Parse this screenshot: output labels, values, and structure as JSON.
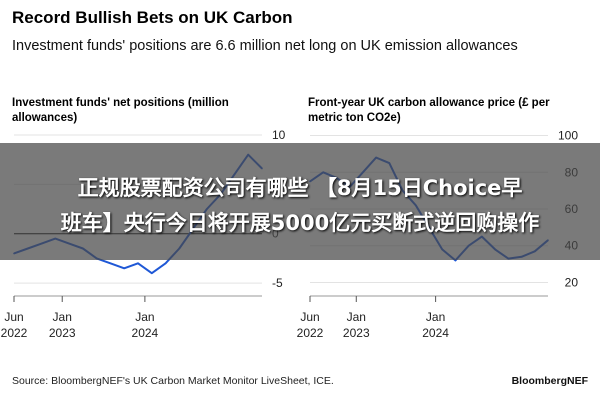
{
  "header": {
    "title": "Record Bullish Bets on UK Carbon",
    "subtitle": "Investment funds' positions are 6.6 million net long on UK emission allowances"
  },
  "overlay": {
    "line1": "正规股票配资公司有哪些 【8月15日Choice早",
    "line2": "班车】央行今日将开展5000亿元买断式逆回购操作"
  },
  "footer": {
    "source": "Source: BloombergNEF's UK Carbon Market Monitor LiveSheet, ICE.",
    "brand": "BloombergNEF"
  },
  "colors": {
    "series": "#1f58d6",
    "zero_line": "#000000",
    "grid": "#e3e3e3"
  },
  "chart_data": [
    {
      "type": "line",
      "title": "Investment funds' net positions (million allowances)",
      "x_ticks": [
        "Jun 2022",
        "Jan 2023",
        "Jan 2024"
      ],
      "y_ticks": [
        10,
        5,
        0,
        -5
      ],
      "ylim": [
        -5.5,
        10.5
      ],
      "xlim": [
        "2022-06",
        "2025-06"
      ],
      "grid": true,
      "series": [
        {
          "x": [
            "2022-06",
            "2022-08",
            "2022-10",
            "2022-12",
            "2023-02",
            "2023-04",
            "2023-06",
            "2023-08",
            "2023-10",
            "2023-12",
            "2024-02",
            "2024-04",
            "2024-06",
            "2024-08",
            "2024-10",
            "2024-12",
            "2025-02",
            "2025-04",
            "2025-06"
          ],
          "y": [
            -2.0,
            -1.5,
            -1.0,
            -0.5,
            -1.0,
            -1.5,
            -2.5,
            -3.0,
            -3.5,
            -3.0,
            -4.0,
            -3.0,
            -1.5,
            0.5,
            2.5,
            4.0,
            6.0,
            8.0,
            6.6
          ]
        }
      ]
    },
    {
      "type": "line",
      "title": "Front-year UK carbon allowance price (£ per metric ton CO2e)",
      "x_ticks": [
        "Jun 2022",
        "Jan 2023",
        "Jan 2024"
      ],
      "y_ticks": [
        100,
        80,
        60,
        40,
        20
      ],
      "ylim": [
        17,
        103
      ],
      "xlim": [
        "2022-06",
        "2025-06"
      ],
      "grid": true,
      "series": [
        {
          "x": [
            "2022-06",
            "2022-08",
            "2022-10",
            "2022-12",
            "2023-02",
            "2023-04",
            "2023-06",
            "2023-08",
            "2023-10",
            "2023-12",
            "2024-02",
            "2024-04",
            "2024-06",
            "2024-08",
            "2024-10",
            "2024-12",
            "2025-02",
            "2025-04",
            "2025-06"
          ],
          "y": [
            75,
            80,
            77,
            72,
            80,
            88,
            85,
            70,
            62,
            50,
            38,
            32,
            40,
            45,
            38,
            33,
            34,
            37,
            43
          ]
        }
      ]
    }
  ]
}
